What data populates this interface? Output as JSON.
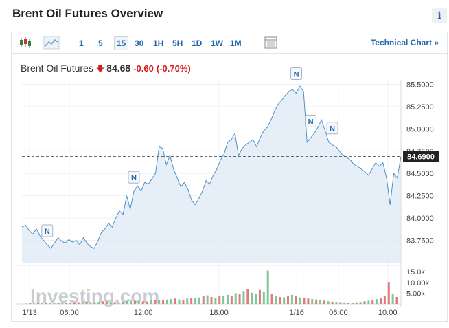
{
  "title": "Brent Oil Futures Overview",
  "info_icon": "info-icon",
  "toolbar": {
    "timeframes": [
      "1",
      "5",
      "15",
      "30",
      "1H",
      "5H",
      "1D",
      "1W",
      "1M"
    ],
    "active": "15",
    "technical_chart_label": "Technical Chart »"
  },
  "quote": {
    "name": "Brent Oil Futures",
    "price": "84.68",
    "change": "-0.60",
    "change_pct": "(-0.70%)",
    "direction_icon": "down-arrow-icon"
  },
  "watermark": "Investing.com",
  "chart_data": {
    "type": "area",
    "y_ticks": [
      "85.5000",
      "85.2500",
      "85.0000",
      "84.7500",
      "84.5000",
      "84.2500",
      "84.0000",
      "83.7500"
    ],
    "ylim": [
      83.5,
      85.55
    ],
    "current_price_label": "84.6900",
    "current_price": 84.69,
    "x_ticks": [
      "1/13",
      "06:00",
      "12:00",
      "18:00",
      "1/16",
      "06:00",
      "10:00"
    ],
    "volume_ticks": [
      "15.0k",
      "10.00k",
      "5.00k"
    ],
    "volume_max": 16000,
    "news_markers": [
      "N",
      "N",
      "N",
      "N",
      "N"
    ],
    "colors": {
      "line": "#4a90c8",
      "fill": "#dde9f4",
      "up": "#7fc69a",
      "down": "#e07b7b",
      "accent": "#2166b0",
      "negative": "#d91a1a"
    },
    "series": [
      {
        "values": [
          83.9,
          83.92,
          83.86,
          83.82,
          83.88,
          83.8,
          83.75,
          83.7,
          83.66,
          83.72,
          83.78,
          83.74,
          83.72,
          83.76,
          83.73,
          83.75,
          83.7,
          83.78,
          83.72,
          83.68,
          83.66,
          83.74,
          83.84,
          83.88,
          83.94,
          83.9,
          84.0,
          84.08,
          84.04,
          84.25,
          84.1,
          84.3,
          84.36,
          84.3,
          84.4,
          84.38,
          84.44,
          84.5,
          84.8,
          84.78,
          84.6,
          84.7,
          84.55,
          84.45,
          84.35,
          84.4,
          84.32,
          84.2,
          84.15,
          84.22,
          84.3,
          84.42,
          84.38,
          84.48,
          84.55,
          84.65,
          84.72,
          84.85,
          84.88,
          84.95,
          84.7,
          84.78,
          84.82,
          84.85,
          84.88,
          84.8,
          84.9,
          84.98,
          85.02,
          85.1,
          85.2,
          85.28,
          85.32,
          85.38,
          85.42,
          85.44,
          85.4,
          85.48,
          85.42,
          84.85,
          84.9,
          84.95,
          85.02,
          85.1,
          84.98,
          84.85,
          84.82,
          84.8,
          84.75,
          84.7,
          84.68,
          84.65,
          84.6,
          84.58,
          84.55,
          84.52,
          84.48,
          84.55,
          84.62,
          84.58,
          84.62,
          84.45,
          84.15,
          84.5,
          84.45,
          84.69
        ]
      }
    ],
    "volumes": [
      200,
      300,
      250,
      400,
      350,
      300,
      500,
      450,
      400,
      600,
      500,
      700,
      650,
      800,
      900,
      1000,
      800,
      700,
      900,
      1200,
      1100,
      1000,
      800,
      700,
      900,
      1300,
      1500,
      1400,
      1300,
      1200,
      1100,
      1600,
      1800,
      1700,
      1900,
      2000,
      2200,
      2500,
      2100,
      1900,
      2400,
      2800,
      2600,
      3000,
      3500,
      4000,
      3200,
      2800,
      3500,
      3600,
      4200,
      3800,
      5000,
      4500,
      6000,
      7000,
      5200,
      4800,
      6500,
      5800,
      15500,
      4500,
      3500,
      3200,
      3000,
      3800,
      4200,
      3500,
      3000,
      2800,
      2500,
      2200,
      2000,
      1800,
      1500,
      1200,
      1000,
      900,
      800,
      700,
      600,
      500,
      700,
      900,
      1200,
      1500,
      1800,
      2200,
      2800,
      3500,
      10200,
      4500,
      3200
    ],
    "volume_up": [
      1,
      0,
      1,
      0,
      1,
      0,
      1,
      1,
      0,
      1,
      0,
      1,
      0,
      0,
      1,
      0,
      1,
      0,
      1,
      0,
      0,
      1,
      0,
      1,
      0,
      1,
      1,
      0,
      1,
      0,
      0,
      1,
      0,
      1,
      0,
      1,
      1,
      0,
      1,
      0,
      1,
      0,
      1,
      1,
      0,
      1,
      0,
      1,
      0,
      1,
      1,
      0,
      1,
      0,
      1,
      0,
      1,
      1,
      0,
      1,
      1,
      0,
      1,
      0,
      1,
      0,
      1,
      0,
      1,
      0,
      0,
      1,
      0,
      1,
      0,
      1,
      0,
      1,
      0,
      1,
      0,
      1,
      0,
      1,
      0,
      1,
      0,
      1,
      0,
      0,
      0,
      1,
      0
    ]
  }
}
